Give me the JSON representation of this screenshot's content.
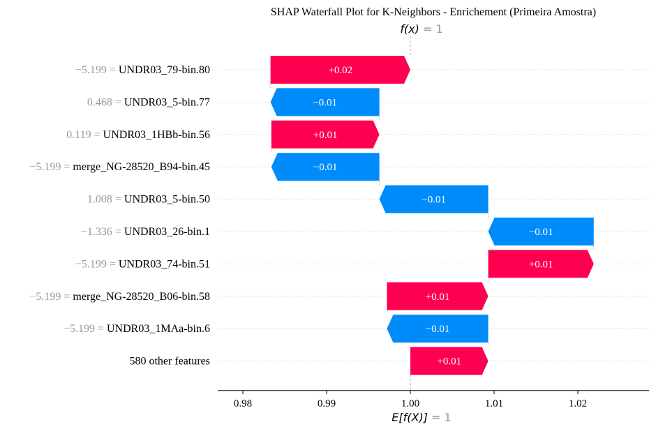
{
  "chart_data": {
    "type": "waterfall",
    "title": "SHAP Waterfall Plot for K-Neighbors - Enrichement (Primeira Amostra)",
    "fx_label": "f(x)",
    "fx_value": "1",
    "base_label": "E[f(X)]",
    "base_value_text": "1",
    "base_value": 1.0,
    "final_value": 1.0,
    "xlim": [
      0.977,
      1.0285
    ],
    "xticks": [
      0.98,
      0.99,
      1.0,
      1.01,
      1.02
    ],
    "xtick_labels": [
      "0.98",
      "0.99",
      "1.00",
      "1.01",
      "1.02"
    ],
    "colors": {
      "positive": "#ff0051",
      "negative": "#008bfb",
      "axis": "#000000",
      "grid": "#cccccc"
    },
    "features": [
      {
        "value": "−5.199",
        "name": "UNDR03_79-bin.80",
        "label": "+0.02",
        "start": 0.9833,
        "end": 1.0
      },
      {
        "value": "0.468",
        "name": "UNDR03_5-bin.77",
        "label": "−0.01",
        "start": 0.9963,
        "end": 0.9833
      },
      {
        "value": "0.119",
        "name": "UNDR03_1HBb-bin.56",
        "label": "+0.01",
        "start": 0.9834,
        "end": 0.9963
      },
      {
        "value": "−5.199",
        "name": "merge_NG-28520_B94-bin.45",
        "label": "−0.01",
        "start": 0.9963,
        "end": 0.9834
      },
      {
        "value": "1.008",
        "name": "UNDR03_5-bin.50",
        "label": "−0.01",
        "start": 1.0093,
        "end": 0.9963
      },
      {
        "value": "−1.336",
        "name": "UNDR03_26-bin.1",
        "label": "−0.01",
        "start": 1.0219,
        "end": 1.0093
      },
      {
        "value": "−5.199",
        "name": "UNDR03_74-bin.51",
        "label": "+0.01",
        "start": 1.0093,
        "end": 1.0219
      },
      {
        "value": "−5.199",
        "name": "merge_NG-28520_B06-bin.58",
        "label": "+0.01",
        "start": 0.9972,
        "end": 1.0093
      },
      {
        "value": "−5.199",
        "name": "UNDR03_1MAa-bin.6",
        "label": "−0.01",
        "start": 1.0093,
        "end": 0.9972
      },
      {
        "value": "",
        "name": "580 other features",
        "label": "+0.01",
        "start": 1.0,
        "end": 1.0093
      }
    ]
  }
}
